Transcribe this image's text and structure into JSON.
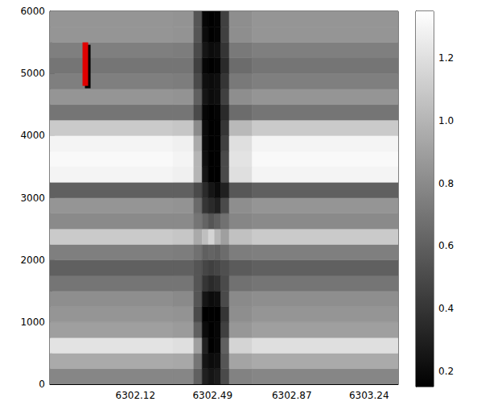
{
  "chart_data": {
    "type": "heatmap",
    "x_edges": [
      6301.71,
      6302.3,
      6302.4,
      6302.44,
      6302.47,
      6302.5,
      6302.53,
      6302.57,
      6302.68,
      6303.38
    ],
    "y_edges": [
      0,
      250,
      500,
      750,
      1000,
      1250,
      1500,
      1750,
      2000,
      2250,
      2500,
      2750,
      3000,
      3250,
      3500,
      3750,
      4000,
      4250,
      4500,
      4750,
      5000,
      5250,
      5500,
      5750,
      6000
    ],
    "z": [
      [
        0.78,
        0.78,
        0.6,
        0.3,
        0.25,
        0.28,
        0.5,
        0.76,
        0.78
      ],
      [
        0.95,
        0.94,
        0.7,
        0.25,
        0.2,
        0.22,
        0.55,
        0.92,
        0.95
      ],
      [
        1.22,
        1.2,
        0.9,
        0.3,
        0.15,
        0.18,
        0.6,
        1.15,
        1.2
      ],
      [
        0.9,
        0.88,
        0.6,
        0.2,
        0.15,
        0.18,
        0.45,
        0.86,
        0.9
      ],
      [
        0.85,
        0.84,
        0.5,
        0.15,
        0.12,
        0.14,
        0.4,
        0.82,
        0.85
      ],
      [
        0.82,
        0.8,
        0.55,
        0.25,
        0.2,
        0.22,
        0.5,
        0.8,
        0.82
      ],
      [
        0.7,
        0.7,
        0.55,
        0.4,
        0.35,
        0.38,
        0.5,
        0.68,
        0.7
      ],
      [
        0.6,
        0.6,
        0.55,
        0.48,
        0.45,
        0.48,
        0.52,
        0.58,
        0.6
      ],
      [
        0.75,
        0.74,
        0.68,
        0.6,
        0.62,
        0.6,
        0.66,
        0.74,
        0.75
      ],
      [
        1.1,
        1.08,
        0.95,
        1.05,
        1.15,
        1.0,
        0.9,
        1.06,
        1.1
      ],
      [
        0.8,
        0.8,
        0.7,
        0.62,
        0.55,
        0.6,
        0.68,
        0.78,
        0.8
      ],
      [
        0.85,
        0.84,
        0.65,
        0.4,
        0.35,
        0.3,
        0.5,
        0.82,
        0.85
      ],
      [
        0.6,
        0.6,
        0.5,
        0.35,
        0.25,
        0.2,
        0.3,
        0.56,
        0.6
      ],
      [
        1.3,
        1.28,
        1.0,
        0.25,
        0.15,
        0.15,
        0.5,
        1.2,
        1.3
      ],
      [
        1.32,
        1.3,
        1.0,
        0.22,
        0.14,
        0.16,
        0.5,
        1.22,
        1.32
      ],
      [
        1.3,
        1.28,
        0.95,
        0.2,
        0.14,
        0.16,
        0.45,
        1.2,
        1.3
      ],
      [
        1.1,
        1.08,
        0.8,
        0.2,
        0.14,
        0.16,
        0.4,
        1.02,
        1.1
      ],
      [
        0.7,
        0.7,
        0.5,
        0.18,
        0.15,
        0.17,
        0.35,
        0.66,
        0.7
      ],
      [
        0.85,
        0.84,
        0.6,
        0.25,
        0.2,
        0.22,
        0.45,
        0.82,
        0.85
      ],
      [
        0.75,
        0.74,
        0.5,
        0.22,
        0.2,
        0.22,
        0.4,
        0.72,
        0.75
      ],
      [
        0.7,
        0.7,
        0.45,
        0.18,
        0.15,
        0.17,
        0.35,
        0.66,
        0.7
      ],
      [
        0.75,
        0.74,
        0.5,
        0.25,
        0.2,
        0.22,
        0.4,
        0.72,
        0.75
      ],
      [
        0.85,
        0.84,
        0.55,
        0.2,
        0.15,
        0.17,
        0.45,
        0.82,
        0.85
      ],
      [
        0.85,
        0.84,
        0.55,
        0.18,
        0.15,
        0.17,
        0.45,
        0.82,
        0.85
      ]
    ],
    "xlim": [
      6301.71,
      6303.38
    ],
    "xticks": [
      6302.12,
      6302.49,
      6302.87,
      6303.24
    ],
    "ylim": [
      0,
      6000
    ],
    "yticks": [
      0,
      1000,
      2000,
      3000,
      4000,
      5000,
      6000
    ],
    "colorbar": {
      "range": [
        0.15,
        1.35
      ],
      "ticks": [
        0.2,
        0.4,
        0.6,
        0.8,
        {
          "value": 1,
          "label": "1.0"
        },
        1.2
      ]
    },
    "annotation": {
      "x": 6301.88,
      "y": [
        4800,
        5500
      ],
      "color": "#e00000"
    }
  }
}
